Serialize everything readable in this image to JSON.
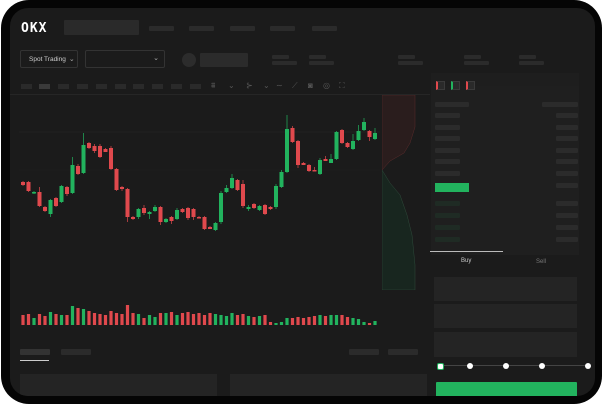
{
  "header": {
    "logo": "OKX"
  },
  "market": {
    "type_label": "Spot Trading",
    "pair_value": ""
  },
  "trade_panel": {
    "tabs": [
      {
        "label": "Buy",
        "active": true
      },
      {
        "label": "Sell",
        "active": false
      }
    ],
    "leverage_level": 0
  },
  "colors": {
    "up": "#22b35e",
    "down": "#e0494d",
    "background": "#1b1b1b"
  },
  "icons": [
    "chevron-down-icon",
    "candle-type-icon",
    "indicator-icon",
    "draw-line-icon",
    "ruler-icon",
    "camera-icon",
    "settings-icon",
    "fullscreen-icon",
    "orderbook-both-icon",
    "orderbook-bids-icon",
    "orderbook-asks-icon"
  ],
  "chart_data": {
    "type": "candlestick",
    "candles": [
      [
        58,
        55,
        59,
        54
      ],
      [
        58,
        49,
        59,
        48
      ],
      [
        47,
        48,
        49,
        46
      ],
      [
        48,
        34,
        53,
        33
      ],
      [
        33,
        29,
        34,
        28
      ],
      [
        26,
        40,
        41,
        23
      ],
      [
        42,
        34,
        43,
        33
      ],
      [
        38,
        54,
        55,
        37
      ],
      [
        53,
        46,
        54,
        44
      ],
      [
        47,
        75,
        83,
        46
      ],
      [
        74,
        66,
        76,
        65
      ],
      [
        67,
        95,
        107,
        66
      ],
      [
        97,
        92,
        98,
        91
      ],
      [
        94,
        89,
        96,
        87
      ],
      [
        94,
        83,
        96,
        82
      ],
      [
        91,
        88,
        92,
        88
      ],
      [
        92,
        71,
        94,
        70
      ],
      [
        71,
        50,
        72,
        49
      ],
      [
        53,
        51,
        54,
        49
      ],
      [
        51,
        23,
        52,
        18
      ],
      [
        23,
        21,
        24,
        20
      ],
      [
        23,
        31,
        32,
        21
      ],
      [
        32,
        27,
        35,
        25
      ],
      [
        26,
        28,
        29,
        21
      ],
      [
        29,
        33,
        35,
        28
      ],
      [
        33,
        18,
        34,
        15
      ],
      [
        18,
        21,
        22,
        17
      ],
      [
        23,
        19,
        24,
        16
      ],
      [
        21,
        30,
        32,
        20
      ],
      [
        31,
        28,
        32,
        27
      ],
      [
        32,
        22,
        33,
        20
      ],
      [
        31,
        23,
        32,
        20
      ],
      [
        23,
        22,
        24,
        22
      ],
      [
        23,
        11,
        24,
        10
      ],
      [
        13,
        11,
        14,
        11
      ],
      [
        10,
        17,
        18,
        9
      ],
      [
        18,
        47,
        49,
        16
      ],
      [
        48,
        52,
        55,
        47
      ],
      [
        52,
        62,
        66,
        51
      ],
      [
        60,
        50,
        61,
        49
      ],
      [
        56,
        34,
        60,
        32
      ],
      [
        31,
        33,
        35,
        29
      ],
      [
        36,
        32,
        37,
        31
      ],
      [
        30,
        34,
        35,
        29
      ],
      [
        35,
        26,
        36,
        25
      ],
      [
        33,
        31,
        34,
        30
      ],
      [
        33,
        54,
        56,
        31
      ],
      [
        53,
        68,
        70,
        52
      ],
      [
        68,
        111,
        125,
        67
      ],
      [
        112,
        98,
        114,
        97
      ],
      [
        99,
        75,
        100,
        72
      ],
      [
        77,
        75,
        78,
        75
      ],
      [
        75,
        69,
        76,
        68
      ],
      [
        70,
        69,
        73,
        69
      ],
      [
        66,
        80,
        82,
        65
      ],
      [
        81,
        79,
        84,
        79
      ],
      [
        77,
        81,
        86,
        77
      ],
      [
        81,
        108,
        109,
        80
      ],
      [
        110,
        97,
        111,
        96
      ],
      [
        97,
        93,
        98,
        92
      ],
      [
        91,
        99,
        106,
        90
      ],
      [
        100,
        109,
        115,
        99
      ],
      [
        110,
        118,
        122,
        109
      ],
      [
        109,
        103,
        110,
        99
      ],
      [
        101,
        107,
        112,
        100
      ]
    ],
    "volume": [
      10,
      11,
      7,
      11,
      9,
      13,
      11,
      10,
      10,
      19,
      17,
      16,
      14,
      12,
      11,
      10,
      14,
      12,
      11,
      20,
      12,
      11,
      7,
      10,
      8,
      12,
      12,
      13,
      10,
      12,
      13,
      11,
      12,
      10,
      12,
      11,
      10,
      9,
      12,
      10,
      11,
      9,
      8,
      9,
      10,
      3,
      2,
      3,
      7,
      7,
      8,
      7,
      8,
      9,
      10,
      9,
      10,
      10,
      10,
      8,
      7,
      6,
      3,
      2,
      4
    ],
    "xlabel": "",
    "ylabel": ""
  }
}
